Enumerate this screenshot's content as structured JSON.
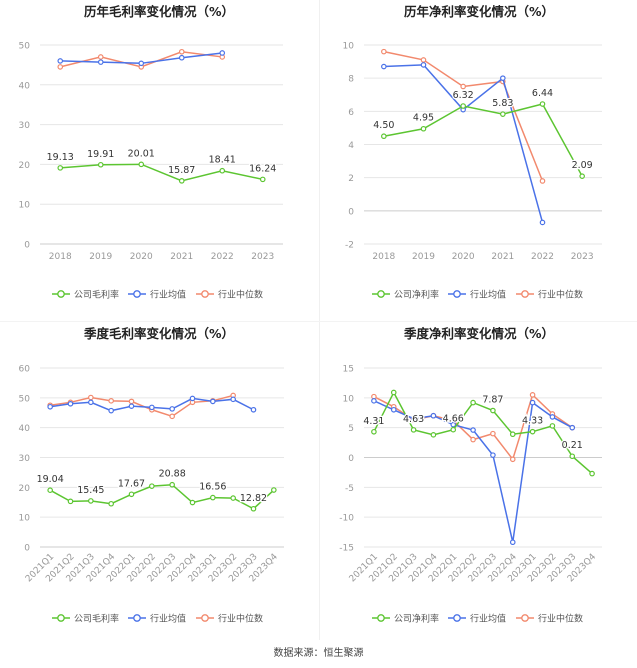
{
  "colors": {
    "company": "#5cc531",
    "mean": "#4a72e8",
    "median": "#f2896d",
    "grid": "#e6e6e6",
    "axis": "#999999"
  },
  "footer": {
    "source": "数据来源：恒生聚源"
  },
  "chart_data": [
    {
      "id": "annual-gross",
      "type": "line",
      "title": "历年毛利率变化情况（%）",
      "categories": [
        "2018",
        "2019",
        "2020",
        "2021",
        "2022",
        "2023"
      ],
      "ylim": [
        0,
        50
      ],
      "yticks": [
        0,
        10,
        20,
        30,
        40,
        50
      ],
      "series": [
        {
          "name": "公司毛利率",
          "role": "company",
          "values": [
            19.13,
            19.91,
            20.01,
            15.87,
            18.41,
            16.24
          ],
          "labels": [
            "19.13",
            "19.91",
            "20.01",
            "15.87",
            "18.41",
            "16.24"
          ]
        },
        {
          "name": "行业均值",
          "role": "mean",
          "values": [
            46.0,
            45.7,
            45.4,
            46.8,
            48.0,
            null
          ]
        },
        {
          "name": "行业中位数",
          "role": "median",
          "values": [
            44.5,
            47.0,
            44.5,
            48.3,
            47.0,
            null
          ]
        }
      ]
    },
    {
      "id": "annual-net",
      "type": "line",
      "title": "历年净利率变化情况（%）",
      "categories": [
        "2018",
        "2019",
        "2020",
        "2021",
        "2022",
        "2023"
      ],
      "ylim": [
        -2,
        10
      ],
      "yticks": [
        -2,
        0,
        2,
        4,
        6,
        8,
        10
      ],
      "series": [
        {
          "name": "公司净利率",
          "role": "company",
          "values": [
            4.5,
            4.95,
            6.32,
            5.83,
            6.44,
            2.09
          ],
          "labels": [
            "4.50",
            "4.95",
            "6.32",
            "5.83",
            "6.44",
            "2.09"
          ]
        },
        {
          "name": "行业均值",
          "role": "mean",
          "values": [
            8.7,
            8.8,
            6.1,
            8.0,
            -0.7,
            null
          ]
        },
        {
          "name": "行业中位数",
          "role": "median",
          "values": [
            9.6,
            9.1,
            7.5,
            7.8,
            1.8,
            null
          ]
        }
      ]
    },
    {
      "id": "quarterly-gross",
      "type": "line",
      "title": "季度毛利率变化情况（%）",
      "categories": [
        "2021Q1",
        "2021Q2",
        "2021Q3",
        "2021Q4",
        "2022Q1",
        "2022Q2",
        "2022Q3",
        "2022Q4",
        "2023Q1",
        "2023Q2",
        "2023Q3",
        "2023Q4"
      ],
      "ylim": [
        0,
        60
      ],
      "yticks": [
        0,
        10,
        20,
        30,
        40,
        50,
        60
      ],
      "series": [
        {
          "name": "公司毛利率",
          "role": "company",
          "values": [
            19.04,
            15.3,
            15.45,
            14.5,
            17.67,
            20.4,
            20.88,
            14.9,
            16.56,
            16.4,
            12.82,
            19.1
          ],
          "labels": [
            "19.04",
            null,
            "15.45",
            null,
            "17.67",
            null,
            "20.88",
            null,
            "16.56",
            null,
            "12.82",
            null
          ]
        },
        {
          "name": "行业均值",
          "role": "mean",
          "values": [
            47.0,
            48.0,
            48.5,
            45.7,
            47.2,
            46.8,
            46.3,
            49.8,
            48.8,
            49.5,
            46.0,
            null
          ]
        },
        {
          "name": "行业中位数",
          "role": "median",
          "values": [
            47.5,
            48.5,
            50.1,
            49.0,
            48.8,
            46.0,
            43.8,
            48.5,
            49.0,
            50.8,
            null,
            null
          ]
        }
      ]
    },
    {
      "id": "quarterly-net",
      "type": "line",
      "title": "季度净利率变化情况（%）",
      "categories": [
        "2021Q1",
        "2021Q2",
        "2021Q3",
        "2021Q4",
        "2022Q1",
        "2022Q2",
        "2022Q3",
        "2022Q4",
        "2023Q1",
        "2023Q2",
        "2023Q3",
        "2023Q4"
      ],
      "ylim": [
        -15,
        15
      ],
      "yticks": [
        -15,
        -10,
        -5,
        0,
        5,
        10,
        15
      ],
      "series": [
        {
          "name": "公司净利率",
          "role": "company",
          "values": [
            4.31,
            10.9,
            4.63,
            3.8,
            4.66,
            9.2,
            7.87,
            3.9,
            4.33,
            5.3,
            0.21,
            -2.7
          ],
          "labels": [
            "4.31",
            null,
            "4.63",
            null,
            "4.66",
            null,
            "7.87",
            null,
            "4.33",
            null,
            "0.21",
            null
          ]
        },
        {
          "name": "行业均值",
          "role": "mean",
          "values": [
            9.5,
            8.0,
            6.5,
            7.0,
            5.5,
            4.6,
            0.4,
            -14.2,
            9.2,
            6.8,
            5.0,
            null
          ]
        },
        {
          "name": "行业中位数",
          "role": "median",
          "values": [
            10.2,
            8.5,
            6.3,
            7.0,
            6.2,
            3.0,
            4.0,
            -0.3,
            10.5,
            7.3,
            5.0,
            null
          ]
        }
      ]
    }
  ]
}
